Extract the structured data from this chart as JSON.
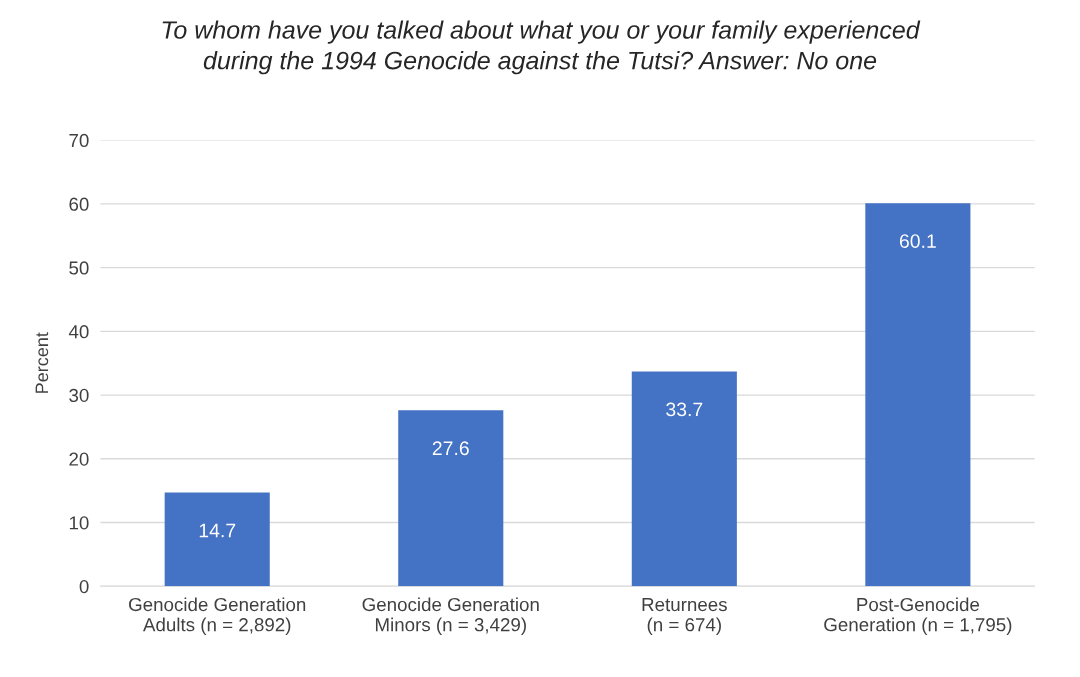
{
  "chart_data": {
    "type": "bar",
    "title": "To whom have you talked about what you or your family experienced\nduring the 1994 Genocide against the Tutsi? Answer: No one",
    "ylabel": "Percent",
    "categories": [
      "Genocide Generation\nAdults (n = 2,892)",
      "Genocide Generation\nMinors (n = 3,429)",
      "Returnees\n(n = 674)",
      "Post-Genocide\nGeneration (n = 1,795)"
    ],
    "values": [
      14.7,
      27.6,
      33.7,
      60.1
    ],
    "color": "#4472c4",
    "ylim": [
      0,
      70
    ],
    "yticks": [
      0,
      10,
      20,
      30,
      40,
      50,
      60,
      70
    ],
    "grid": "y",
    "data_labels": true,
    "legend": false
  }
}
